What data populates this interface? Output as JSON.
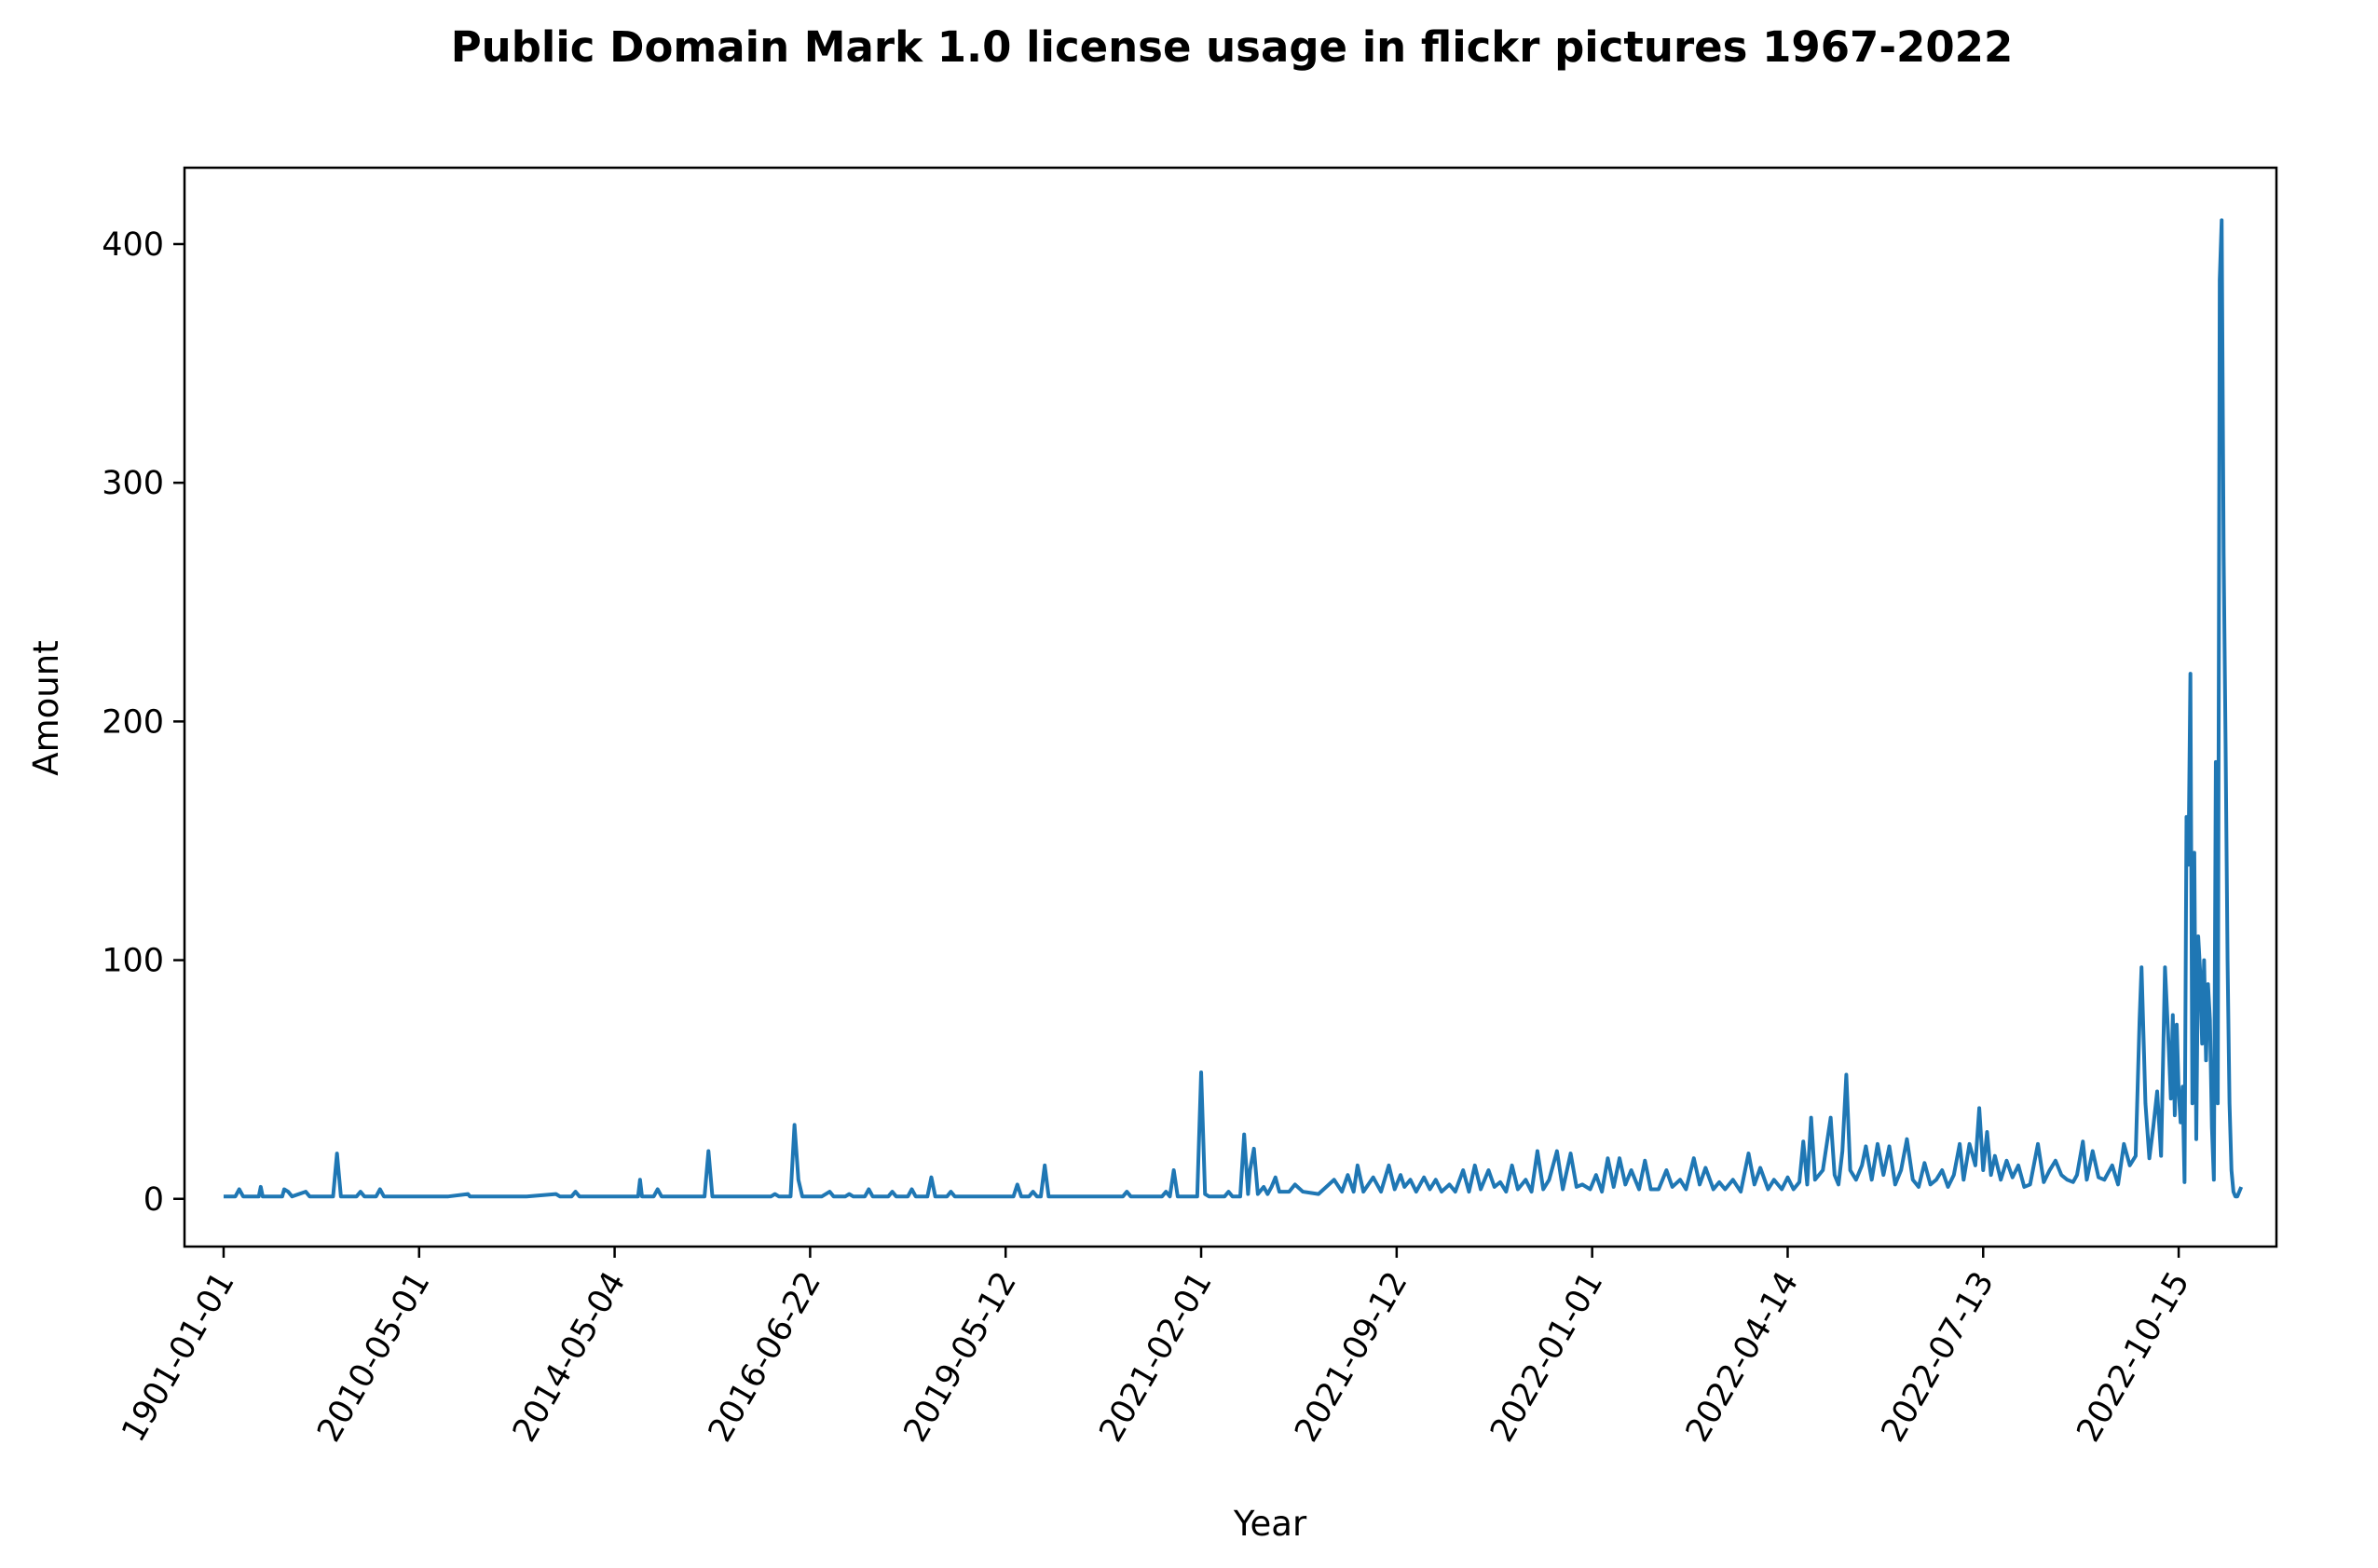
{
  "chart_data": {
    "type": "line",
    "title": "Public Domain Mark 1.0 license usage in flickr pictures 1967-2022",
    "xlabel": "Year",
    "ylabel": "Amount",
    "ylim": [
      -20,
      432
    ],
    "x_index_range": [
      -20,
      1050
    ],
    "y_ticks": [
      0,
      100,
      200,
      300,
      400
    ],
    "x_ticks": [
      {
        "index": 0,
        "label": "1901-01-01"
      },
      {
        "index": 100,
        "label": "2010-05-01"
      },
      {
        "index": 200,
        "label": "2014-05-04"
      },
      {
        "index": 300,
        "label": "2016-06-22"
      },
      {
        "index": 400,
        "label": "2019-05-12"
      },
      {
        "index": 500,
        "label": "2021-02-01"
      },
      {
        "index": 600,
        "label": "2021-09-12"
      },
      {
        "index": 700,
        "label": "2022-01-01"
      },
      {
        "index": 800,
        "label": "2022-04-14"
      },
      {
        "index": 900,
        "label": "2022-07-13"
      },
      {
        "index": 1000,
        "label": "2022-10-15"
      }
    ],
    "grid": false,
    "legend": "none",
    "series": [
      {
        "color": "#1f77b4",
        "points": [
          [
            0,
            1
          ],
          [
            6,
            1
          ],
          [
            8,
            4
          ],
          [
            10,
            1
          ],
          [
            18,
            1
          ],
          [
            19,
            5
          ],
          [
            20,
            1
          ],
          [
            30,
            1
          ],
          [
            31,
            4
          ],
          [
            33,
            3
          ],
          [
            35,
            1
          ],
          [
            42,
            3
          ],
          [
            44,
            1
          ],
          [
            50,
            1
          ],
          [
            56,
            1
          ],
          [
            58,
            19
          ],
          [
            60,
            1
          ],
          [
            68,
            1
          ],
          [
            70,
            3
          ],
          [
            72,
            1
          ],
          [
            78,
            1
          ],
          [
            80,
            4
          ],
          [
            82,
            1
          ],
          [
            100,
            1
          ],
          [
            115,
            1
          ],
          [
            125,
            2
          ],
          [
            126,
            1
          ],
          [
            155,
            1
          ],
          [
            170,
            2
          ],
          [
            172,
            1
          ],
          [
            178,
            1
          ],
          [
            180,
            3
          ],
          [
            182,
            1
          ],
          [
            198,
            1
          ],
          [
            200,
            1
          ],
          [
            212,
            1
          ],
          [
            213,
            8
          ],
          [
            214,
            1
          ],
          [
            220,
            1
          ],
          [
            222,
            4
          ],
          [
            224,
            1
          ],
          [
            240,
            1
          ],
          [
            246,
            1
          ],
          [
            248,
            20
          ],
          [
            250,
            1
          ],
          [
            280,
            1
          ],
          [
            282,
            2
          ],
          [
            284,
            1
          ],
          [
            290,
            1
          ],
          [
            292,
            31
          ],
          [
            294,
            8
          ],
          [
            296,
            1
          ],
          [
            306,
            1
          ],
          [
            310,
            3
          ],
          [
            312,
            1
          ],
          [
            318,
            1
          ],
          [
            320,
            2
          ],
          [
            322,
            1
          ],
          [
            328,
            1
          ],
          [
            330,
            4
          ],
          [
            332,
            1
          ],
          [
            340,
            1
          ],
          [
            342,
            3
          ],
          [
            344,
            1
          ],
          [
            350,
            1
          ],
          [
            352,
            4
          ],
          [
            354,
            1
          ],
          [
            360,
            1
          ],
          [
            362,
            9
          ],
          [
            364,
            1
          ],
          [
            370,
            1
          ],
          [
            372,
            3
          ],
          [
            374,
            1
          ],
          [
            404,
            1
          ],
          [
            406,
            6
          ],
          [
            408,
            1
          ],
          [
            412,
            1
          ],
          [
            414,
            3
          ],
          [
            416,
            1
          ],
          [
            418,
            1
          ],
          [
            420,
            14
          ],
          [
            422,
            1
          ],
          [
            450,
            1
          ],
          [
            460,
            1
          ],
          [
            462,
            3
          ],
          [
            464,
            1
          ],
          [
            480,
            1
          ],
          [
            482,
            3
          ],
          [
            484,
            1
          ],
          [
            486,
            12
          ],
          [
            488,
            1
          ],
          [
            498,
            1
          ],
          [
            500,
            53
          ],
          [
            502,
            2
          ],
          [
            504,
            1
          ],
          [
            512,
            1
          ],
          [
            514,
            3
          ],
          [
            516,
            1
          ],
          [
            520,
            1
          ],
          [
            522,
            27
          ],
          [
            524,
            2
          ],
          [
            525,
            12
          ],
          [
            527,
            21
          ],
          [
            529,
            2
          ],
          [
            532,
            5
          ],
          [
            534,
            2
          ],
          [
            536,
            5
          ],
          [
            538,
            9
          ],
          [
            540,
            3
          ],
          [
            545,
            3
          ],
          [
            548,
            6
          ],
          [
            552,
            3
          ],
          [
            560,
            2
          ],
          [
            568,
            8
          ],
          [
            572,
            3
          ],
          [
            575,
            10
          ],
          [
            578,
            3
          ],
          [
            580,
            14
          ],
          [
            583,
            3
          ],
          [
            588,
            9
          ],
          [
            592,
            3
          ],
          [
            596,
            14
          ],
          [
            599,
            4
          ],
          [
            602,
            10
          ],
          [
            604,
            5
          ],
          [
            607,
            8
          ],
          [
            610,
            3
          ],
          [
            614,
            9
          ],
          [
            617,
            4
          ],
          [
            620,
            8
          ],
          [
            623,
            3
          ],
          [
            627,
            6
          ],
          [
            630,
            3
          ],
          [
            634,
            12
          ],
          [
            637,
            3
          ],
          [
            640,
            14
          ],
          [
            643,
            4
          ],
          [
            647,
            12
          ],
          [
            650,
            5
          ],
          [
            653,
            7
          ],
          [
            656,
            3
          ],
          [
            659,
            14
          ],
          [
            662,
            4
          ],
          [
            666,
            8
          ],
          [
            669,
            3
          ],
          [
            672,
            20
          ],
          [
            675,
            4
          ],
          [
            678,
            8
          ],
          [
            682,
            20
          ],
          [
            685,
            4
          ],
          [
            689,
            19
          ],
          [
            692,
            5
          ],
          [
            695,
            6
          ],
          [
            699,
            4
          ],
          [
            702,
            10
          ],
          [
            705,
            3
          ],
          [
            708,
            17
          ],
          [
            711,
            5
          ],
          [
            714,
            17
          ],
          [
            717,
            6
          ],
          [
            720,
            12
          ],
          [
            724,
            4
          ],
          [
            727,
            16
          ],
          [
            730,
            4
          ],
          [
            734,
            4
          ],
          [
            738,
            12
          ],
          [
            741,
            5
          ],
          [
            745,
            8
          ],
          [
            748,
            4
          ],
          [
            752,
            17
          ],
          [
            755,
            6
          ],
          [
            758,
            13
          ],
          [
            762,
            4
          ],
          [
            765,
            7
          ],
          [
            768,
            4
          ],
          [
            772,
            8
          ],
          [
            776,
            3
          ],
          [
            780,
            19
          ],
          [
            783,
            6
          ],
          [
            786,
            13
          ],
          [
            790,
            4
          ],
          [
            793,
            8
          ],
          [
            797,
            4
          ],
          [
            800,
            9
          ],
          [
            803,
            4
          ],
          [
            806,
            7
          ],
          [
            808,
            24
          ],
          [
            810,
            6
          ],
          [
            812,
            34
          ],
          [
            814,
            8
          ],
          [
            818,
            12
          ],
          [
            822,
            34
          ],
          [
            824,
            10
          ],
          [
            826,
            6
          ],
          [
            828,
            20
          ],
          [
            830,
            52
          ],
          [
            832,
            12
          ],
          [
            835,
            8
          ],
          [
            838,
            14
          ],
          [
            840,
            22
          ],
          [
            843,
            8
          ],
          [
            846,
            23
          ],
          [
            849,
            10
          ],
          [
            852,
            22
          ],
          [
            855,
            6
          ],
          [
            858,
            12
          ],
          [
            861,
            25
          ],
          [
            864,
            8
          ],
          [
            867,
            5
          ],
          [
            870,
            15
          ],
          [
            873,
            6
          ],
          [
            876,
            8
          ],
          [
            879,
            12
          ],
          [
            882,
            5
          ],
          [
            885,
            10
          ],
          [
            888,
            23
          ],
          [
            890,
            8
          ],
          [
            893,
            23
          ],
          [
            896,
            14
          ],
          [
            898,
            38
          ],
          [
            900,
            12
          ],
          [
            902,
            28
          ],
          [
            904,
            10
          ],
          [
            906,
            18
          ],
          [
            909,
            8
          ],
          [
            912,
            16
          ],
          [
            915,
            9
          ],
          [
            918,
            14
          ],
          [
            921,
            5
          ],
          [
            924,
            6
          ],
          [
            928,
            23
          ],
          [
            931,
            7
          ],
          [
            934,
            12
          ],
          [
            937,
            16
          ],
          [
            940,
            10
          ],
          [
            943,
            8
          ],
          [
            946,
            7
          ],
          [
            948,
            10
          ],
          [
            951,
            24
          ],
          [
            953,
            8
          ],
          [
            956,
            20
          ],
          [
            959,
            9
          ],
          [
            962,
            8
          ],
          [
            966,
            14
          ],
          [
            969,
            6
          ],
          [
            972,
            23
          ],
          [
            975,
            14
          ],
          [
            978,
            18
          ],
          [
            980,
            75
          ],
          [
            981,
            97
          ],
          [
            983,
            40
          ],
          [
            985,
            17
          ],
          [
            987,
            30
          ],
          [
            989,
            45
          ],
          [
            991,
            18
          ],
          [
            993,
            97
          ],
          [
            995,
            62
          ],
          [
            996,
            42
          ],
          [
            997,
            77
          ],
          [
            998,
            35
          ],
          [
            999,
            73
          ],
          [
            1000,
            45
          ],
          [
            1001,
            32
          ],
          [
            1002,
            47
          ],
          [
            1003,
            7
          ],
          [
            1004,
            160
          ],
          [
            1005,
            140
          ],
          [
            1006,
            220
          ],
          [
            1007,
            40
          ],
          [
            1008,
            145
          ],
          [
            1009,
            25
          ],
          [
            1010,
            110
          ],
          [
            1011,
            95
          ],
          [
            1012,
            65
          ],
          [
            1013,
            100
          ],
          [
            1014,
            58
          ],
          [
            1015,
            90
          ],
          [
            1016,
            75
          ],
          [
            1017,
            30
          ],
          [
            1018,
            8
          ],
          [
            1019,
            183
          ],
          [
            1020,
            40
          ],
          [
            1021,
            385
          ],
          [
            1022,
            410
          ],
          [
            1023,
            270
          ],
          [
            1024,
            190
          ],
          [
            1025,
            100
          ],
          [
            1026,
            40
          ],
          [
            1027,
            12
          ],
          [
            1028,
            3
          ],
          [
            1029,
            1
          ],
          [
            1030,
            1
          ],
          [
            1032,
            5
          ]
        ]
      }
    ]
  }
}
